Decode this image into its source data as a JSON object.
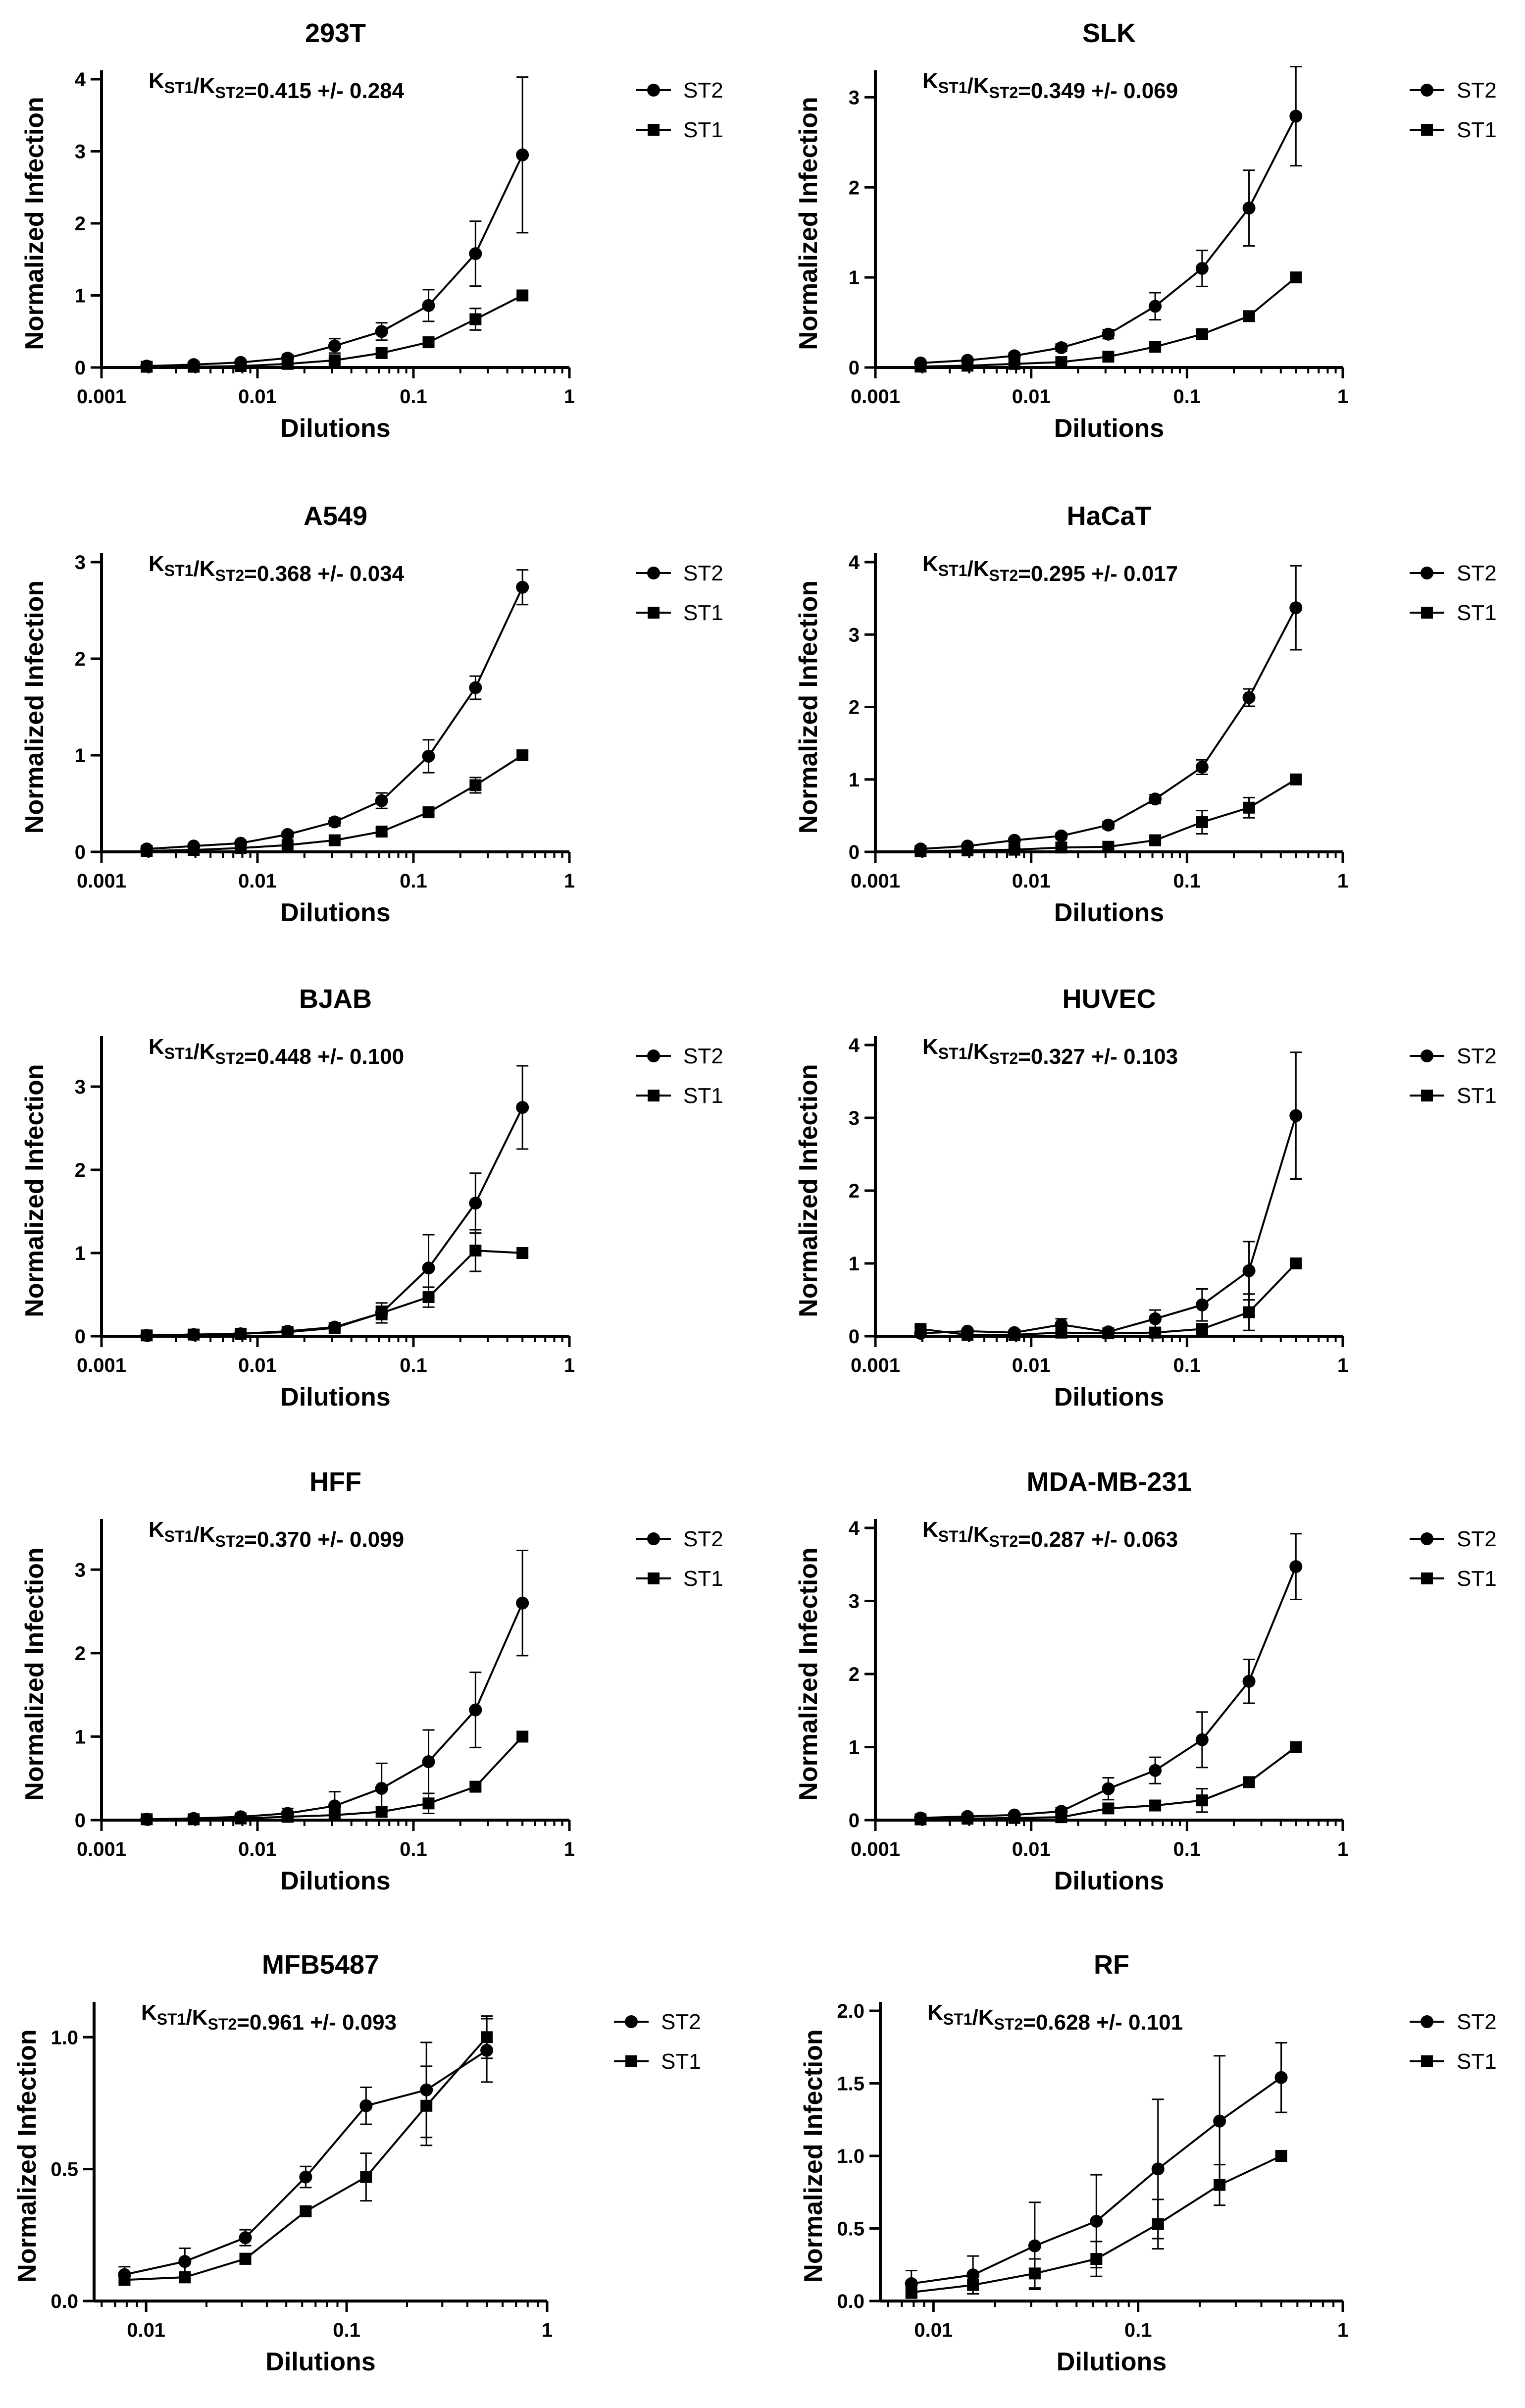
{
  "colors": {
    "line": "#000000",
    "background": "#ffffff"
  },
  "chart_data": [
    {
      "type": "line",
      "title": "293T",
      "xlabel": "Dilutions",
      "ylabel": "Normalized Infection",
      "xscale": "log",
      "xlim": [
        0.001,
        1
      ],
      "ylim": [
        0,
        4
      ],
      "xticks": [
        0.001,
        0.01,
        0.1,
        1
      ],
      "xtick_labels": [
        "0.001",
        "0.01",
        "0.1",
        "1"
      ],
      "yticks": [
        0,
        1,
        2,
        3,
        4
      ],
      "ytick_labels": [
        "0",
        "1",
        "2",
        "3",
        "4"
      ],
      "annotation": {
        "k_label": "K",
        "sub1": "ST1",
        "slash": "/",
        "sub2": "ST2",
        "value": "=0.415 +/- 0.284"
      },
      "x": [
        0.00195,
        0.0039,
        0.0078,
        0.0156,
        0.03125,
        0.0625,
        0.125,
        0.25,
        0.5
      ],
      "series": [
        {
          "name": "ST2",
          "marker": "circle",
          "values": [
            0.02,
            0.04,
            0.07,
            0.13,
            0.3,
            0.5,
            0.86,
            1.58,
            2.95
          ],
          "errors": [
            0.01,
            0.02,
            0.03,
            0.05,
            0.1,
            0.12,
            0.22,
            0.45,
            1.08
          ]
        },
        {
          "name": "ST1",
          "marker": "square",
          "values": [
            0.01,
            0.01,
            0.02,
            0.05,
            0.1,
            0.2,
            0.35,
            0.67,
            1.0
          ],
          "errors": [
            0.0,
            0.0,
            0.01,
            0.02,
            0.03,
            0.05,
            0.07,
            0.15,
            0.0
          ]
        }
      ]
    },
    {
      "type": "line",
      "title": "SLK",
      "xlabel": "Dilutions",
      "ylabel": "Normalized Infection",
      "xscale": "log",
      "xlim": [
        0.001,
        1
      ],
      "ylim": [
        0,
        3.2
      ],
      "xticks": [
        0.001,
        0.01,
        0.1,
        1
      ],
      "xtick_labels": [
        "0.001",
        "0.01",
        "0.1",
        "1"
      ],
      "yticks": [
        0,
        1,
        2,
        3
      ],
      "ytick_labels": [
        "0",
        "1",
        "2",
        "3"
      ],
      "annotation": {
        "k_label": "K",
        "sub1": "ST1",
        "slash": "/",
        "sub2": "ST2",
        "value": "=0.349 +/- 0.069"
      },
      "x": [
        0.00195,
        0.0039,
        0.0078,
        0.0156,
        0.03125,
        0.0625,
        0.125,
        0.25,
        0.5
      ],
      "series": [
        {
          "name": "ST2",
          "marker": "circle",
          "values": [
            0.05,
            0.08,
            0.13,
            0.22,
            0.37,
            0.68,
            1.1,
            1.77,
            2.79
          ],
          "errors": [
            0.01,
            0.02,
            0.03,
            0.04,
            0.05,
            0.15,
            0.2,
            0.42,
            0.55
          ]
        },
        {
          "name": "ST1",
          "marker": "square",
          "values": [
            0.01,
            0.02,
            0.04,
            0.06,
            0.12,
            0.23,
            0.37,
            0.57,
            1.0
          ],
          "errors": [
            0.0,
            0.0,
            0.01,
            0.01,
            0.02,
            0.04,
            0.04,
            0.05,
            0.0
          ]
        }
      ]
    },
    {
      "type": "line",
      "title": "A549",
      "xlabel": "Dilutions",
      "ylabel": "Normalized Infection",
      "xscale": "log",
      "xlim": [
        0.001,
        1
      ],
      "ylim": [
        0,
        3
      ],
      "xticks": [
        0.001,
        0.01,
        0.1,
        1
      ],
      "xtick_labels": [
        "0.001",
        "0.01",
        "0.1",
        "1"
      ],
      "yticks": [
        0,
        1,
        2,
        3
      ],
      "ytick_labels": [
        "0",
        "1",
        "2",
        "3"
      ],
      "annotation": {
        "k_label": "K",
        "sub1": "ST1",
        "slash": "/",
        "sub2": "ST2",
        "value": "=0.368 +/- 0.034"
      },
      "x": [
        0.00195,
        0.0039,
        0.0078,
        0.0156,
        0.03125,
        0.0625,
        0.125,
        0.25,
        0.5
      ],
      "series": [
        {
          "name": "ST2",
          "marker": "circle",
          "values": [
            0.03,
            0.06,
            0.09,
            0.18,
            0.31,
            0.53,
            0.99,
            1.7,
            2.74
          ],
          "errors": [
            0.01,
            0.01,
            0.02,
            0.03,
            0.04,
            0.08,
            0.17,
            0.12,
            0.18
          ]
        },
        {
          "name": "ST1",
          "marker": "square",
          "values": [
            0.01,
            0.02,
            0.04,
            0.07,
            0.12,
            0.21,
            0.41,
            0.69,
            1.0
          ],
          "errors": [
            0.0,
            0.0,
            0.01,
            0.01,
            0.02,
            0.03,
            0.03,
            0.08,
            0.0
          ]
        }
      ]
    },
    {
      "type": "line",
      "title": "HaCaT",
      "xlabel": "Dilutions",
      "ylabel": "Normalized Infection",
      "xscale": "log",
      "xlim": [
        0.001,
        1
      ],
      "ylim": [
        0,
        4
      ],
      "xticks": [
        0.001,
        0.01,
        0.1,
        1
      ],
      "xtick_labels": [
        "0.001",
        "0.01",
        "0.1",
        "1"
      ],
      "yticks": [
        0,
        1,
        2,
        3,
        4
      ],
      "ytick_labels": [
        "0",
        "1",
        "2",
        "3",
        "4"
      ],
      "annotation": {
        "k_label": "K",
        "sub1": "ST1",
        "slash": "/",
        "sub2": "ST2",
        "value": "=0.295 +/- 0.017"
      },
      "x": [
        0.00195,
        0.0039,
        0.0078,
        0.0156,
        0.03125,
        0.0625,
        0.125,
        0.25,
        0.5
      ],
      "series": [
        {
          "name": "ST2",
          "marker": "circle",
          "values": [
            0.04,
            0.08,
            0.16,
            0.22,
            0.37,
            0.73,
            1.17,
            2.13,
            3.37
          ],
          "errors": [
            0.01,
            0.02,
            0.03,
            0.04,
            0.05,
            0.06,
            0.1,
            0.12,
            0.58
          ]
        },
        {
          "name": "ST1",
          "marker": "square",
          "values": [
            0.01,
            0.02,
            0.03,
            0.06,
            0.07,
            0.16,
            0.41,
            0.61,
            1.0
          ],
          "errors": [
            0.0,
            0.0,
            0.01,
            0.01,
            0.02,
            0.04,
            0.16,
            0.14,
            0.0
          ]
        }
      ]
    },
    {
      "type": "line",
      "title": "BJAB",
      "xlabel": "Dilutions",
      "ylabel": "Normalized Infection",
      "xscale": "log",
      "xlim": [
        0.001,
        1
      ],
      "ylim": [
        0,
        3.5
      ],
      "xticks": [
        0.001,
        0.01,
        0.1,
        1
      ],
      "xtick_labels": [
        "0.001",
        "0.01",
        "0.1",
        "1"
      ],
      "yticks": [
        0,
        1,
        2,
        3
      ],
      "ytick_labels": [
        "0",
        "1",
        "2",
        "3"
      ],
      "annotation": {
        "k_label": "K",
        "sub1": "ST1",
        "slash": "/",
        "sub2": "ST2",
        "value": "=0.448 +/- 0.100"
      },
      "x": [
        0.00195,
        0.0039,
        0.0078,
        0.0156,
        0.03125,
        0.0625,
        0.125,
        0.25,
        0.5
      ],
      "series": [
        {
          "name": "ST2",
          "marker": "circle",
          "values": [
            0.01,
            0.02,
            0.03,
            0.06,
            0.11,
            0.28,
            0.82,
            1.6,
            2.75
          ],
          "errors": [
            0.0,
            0.01,
            0.02,
            0.03,
            0.05,
            0.12,
            0.4,
            0.36,
            0.5
          ]
        },
        {
          "name": "ST1",
          "marker": "square",
          "values": [
            0.01,
            0.02,
            0.03,
            0.05,
            0.1,
            0.28,
            0.47,
            1.03,
            1.0
          ],
          "errors": [
            0.0,
            0.01,
            0.02,
            0.02,
            0.04,
            0.08,
            0.12,
            0.25,
            0.0
          ]
        }
      ]
    },
    {
      "type": "line",
      "title": "HUVEC",
      "xlabel": "Dilutions",
      "ylabel": "Normalized Infection",
      "xscale": "log",
      "xlim": [
        0.001,
        1
      ],
      "ylim": [
        0,
        4
      ],
      "xticks": [
        0.001,
        0.01,
        0.1,
        1
      ],
      "xtick_labels": [
        "0.001",
        "0.01",
        "0.1",
        "1"
      ],
      "yticks": [
        0,
        1,
        2,
        3,
        4
      ],
      "ytick_labels": [
        "0",
        "1",
        "2",
        "3",
        "4"
      ],
      "annotation": {
        "k_label": "K",
        "sub1": "ST1",
        "slash": "/",
        "sub2": "ST2",
        "value": "=0.327 +/- 0.103"
      },
      "x": [
        0.00195,
        0.0039,
        0.0078,
        0.0156,
        0.03125,
        0.0625,
        0.125,
        0.25,
        0.5
      ],
      "series": [
        {
          "name": "ST2",
          "marker": "circle",
          "values": [
            0.04,
            0.07,
            0.05,
            0.16,
            0.06,
            0.24,
            0.43,
            0.9,
            3.03
          ],
          "errors": [
            0.02,
            0.03,
            0.03,
            0.08,
            0.03,
            0.12,
            0.22,
            0.4,
            0.87
          ]
        },
        {
          "name": "ST1",
          "marker": "square",
          "values": [
            0.1,
            0.02,
            0.02,
            0.05,
            0.04,
            0.05,
            0.1,
            0.33,
            1.0
          ],
          "errors": [
            0.04,
            0.01,
            0.01,
            0.03,
            0.02,
            0.03,
            0.06,
            0.25,
            0.0
          ]
        }
      ]
    },
    {
      "type": "line",
      "title": "HFF",
      "xlabel": "Dilutions",
      "ylabel": "Normalized Infection",
      "xscale": "log",
      "xlim": [
        0.001,
        1
      ],
      "ylim": [
        0,
        3.5
      ],
      "xticks": [
        0.001,
        0.01,
        0.1,
        1
      ],
      "xtick_labels": [
        "0.001",
        "0.01",
        "0.1",
        "1"
      ],
      "yticks": [
        0,
        1,
        2,
        3
      ],
      "ytick_labels": [
        "0",
        "1",
        "2",
        "3"
      ],
      "annotation": {
        "k_label": "K",
        "sub1": "ST1",
        "slash": "/",
        "sub2": "ST2",
        "value": "=0.370 +/- 0.099"
      },
      "x": [
        0.00195,
        0.0039,
        0.0078,
        0.0156,
        0.03125,
        0.0625,
        0.125,
        0.25,
        0.5
      ],
      "series": [
        {
          "name": "ST2",
          "marker": "circle",
          "values": [
            0.01,
            0.02,
            0.04,
            0.08,
            0.17,
            0.38,
            0.7,
            1.32,
            2.6
          ],
          "errors": [
            0.01,
            0.01,
            0.03,
            0.06,
            0.17,
            0.3,
            0.38,
            0.45,
            0.63
          ]
        },
        {
          "name": "ST1",
          "marker": "square",
          "values": [
            0.01,
            0.01,
            0.02,
            0.04,
            0.06,
            0.1,
            0.2,
            0.4,
            1.0
          ],
          "errors": [
            0.0,
            0.01,
            0.01,
            0.02,
            0.04,
            0.06,
            0.12,
            0.05,
            0.0
          ]
        }
      ]
    },
    {
      "type": "line",
      "title": "MDA-MB-231",
      "xlabel": "Dilutions",
      "ylabel": "Normalized Infection",
      "xscale": "log",
      "xlim": [
        0.001,
        1
      ],
      "ylim": [
        0,
        4
      ],
      "xticks": [
        0.001,
        0.01,
        0.1,
        1
      ],
      "xtick_labels": [
        "0.001",
        "0.01",
        "0.1",
        "1"
      ],
      "yticks": [
        0,
        1,
        2,
        3,
        4
      ],
      "ytick_labels": [
        "0",
        "1",
        "2",
        "3",
        "4"
      ],
      "annotation": {
        "k_label": "K",
        "sub1": "ST1",
        "slash": "/",
        "sub2": "ST2",
        "value": "=0.287 +/- 0.063"
      },
      "x": [
        0.00195,
        0.0039,
        0.0078,
        0.0156,
        0.03125,
        0.0625,
        0.125,
        0.25,
        0.5
      ],
      "series": [
        {
          "name": "ST2",
          "marker": "circle",
          "values": [
            0.03,
            0.05,
            0.07,
            0.12,
            0.43,
            0.68,
            1.1,
            1.9,
            3.47
          ],
          "errors": [
            0.01,
            0.02,
            0.03,
            0.05,
            0.15,
            0.18,
            0.38,
            0.3,
            0.45
          ]
        },
        {
          "name": "ST1",
          "marker": "square",
          "values": [
            0.01,
            0.02,
            0.03,
            0.04,
            0.16,
            0.2,
            0.27,
            0.52,
            1.0
          ],
          "errors": [
            0.0,
            0.01,
            0.01,
            0.02,
            0.05,
            0.06,
            0.16,
            0.05,
            0.0
          ]
        }
      ]
    },
    {
      "type": "line",
      "title": "MFB5487",
      "xlabel": "Dilutions",
      "ylabel": "Normalized Infection",
      "xscale": "log",
      "xlim": [
        0.0055,
        1
      ],
      "ylim": [
        0,
        1.1
      ],
      "xticks": [
        0.01,
        0.1,
        1
      ],
      "xtick_labels": [
        "0.01",
        "0.1",
        "1"
      ],
      "yticks": [
        0,
        0.5,
        1.0
      ],
      "ytick_labels": [
        "0.0",
        "0.5",
        "1.0"
      ],
      "annotation": {
        "k_label": "K",
        "sub1": "ST1",
        "slash": "/",
        "sub2": "ST2",
        "value": "=0.961 +/- 0.093"
      },
      "x": [
        0.0078,
        0.0156,
        0.03125,
        0.0625,
        0.125,
        0.25,
        0.5
      ],
      "series": [
        {
          "name": "ST2",
          "marker": "circle",
          "values": [
            0.1,
            0.15,
            0.24,
            0.47,
            0.74,
            0.8,
            0.95
          ],
          "errors": [
            0.03,
            0.05,
            0.03,
            0.04,
            0.07,
            0.18,
            0.12
          ]
        },
        {
          "name": "ST1",
          "marker": "square",
          "values": [
            0.08,
            0.09,
            0.16,
            0.34,
            0.47,
            0.74,
            1.0
          ],
          "errors": [
            0.01,
            0.02,
            0.02,
            0.02,
            0.09,
            0.15,
            0.08
          ]
        }
      ]
    },
    {
      "type": "line",
      "title": "RF",
      "xlabel": "Dilutions",
      "ylabel": "Normalized Infection",
      "xscale": "log",
      "xlim": [
        0.0055,
        1
      ],
      "ylim": [
        0,
        2.0
      ],
      "xticks": [
        0.01,
        0.1,
        1
      ],
      "xtick_labels": [
        "0.01",
        "0.1",
        "1"
      ],
      "yticks": [
        0,
        0.5,
        1.0,
        1.5,
        2.0
      ],
      "ytick_labels": [
        "0.0",
        "0.5",
        "1.0",
        "1.5",
        "2.0"
      ],
      "annotation": {
        "k_label": "K",
        "sub1": "ST1",
        "slash": "/",
        "sub2": "ST2",
        "value": "=0.628 +/- 0.101"
      },
      "x": [
        0.0078,
        0.0156,
        0.03125,
        0.0625,
        0.125,
        0.25,
        0.5
      ],
      "series": [
        {
          "name": "ST2",
          "marker": "circle",
          "values": [
            0.12,
            0.18,
            0.38,
            0.55,
            0.91,
            1.24,
            1.54
          ],
          "errors": [
            0.09,
            0.13,
            0.3,
            0.32,
            0.48,
            0.45,
            0.24
          ]
        },
        {
          "name": "ST1",
          "marker": "square",
          "values": [
            0.06,
            0.11,
            0.19,
            0.29,
            0.53,
            0.8,
            1.0
          ],
          "errors": [
            0.04,
            0.06,
            0.1,
            0.12,
            0.17,
            0.14,
            0.0
          ]
        }
      ]
    }
  ]
}
